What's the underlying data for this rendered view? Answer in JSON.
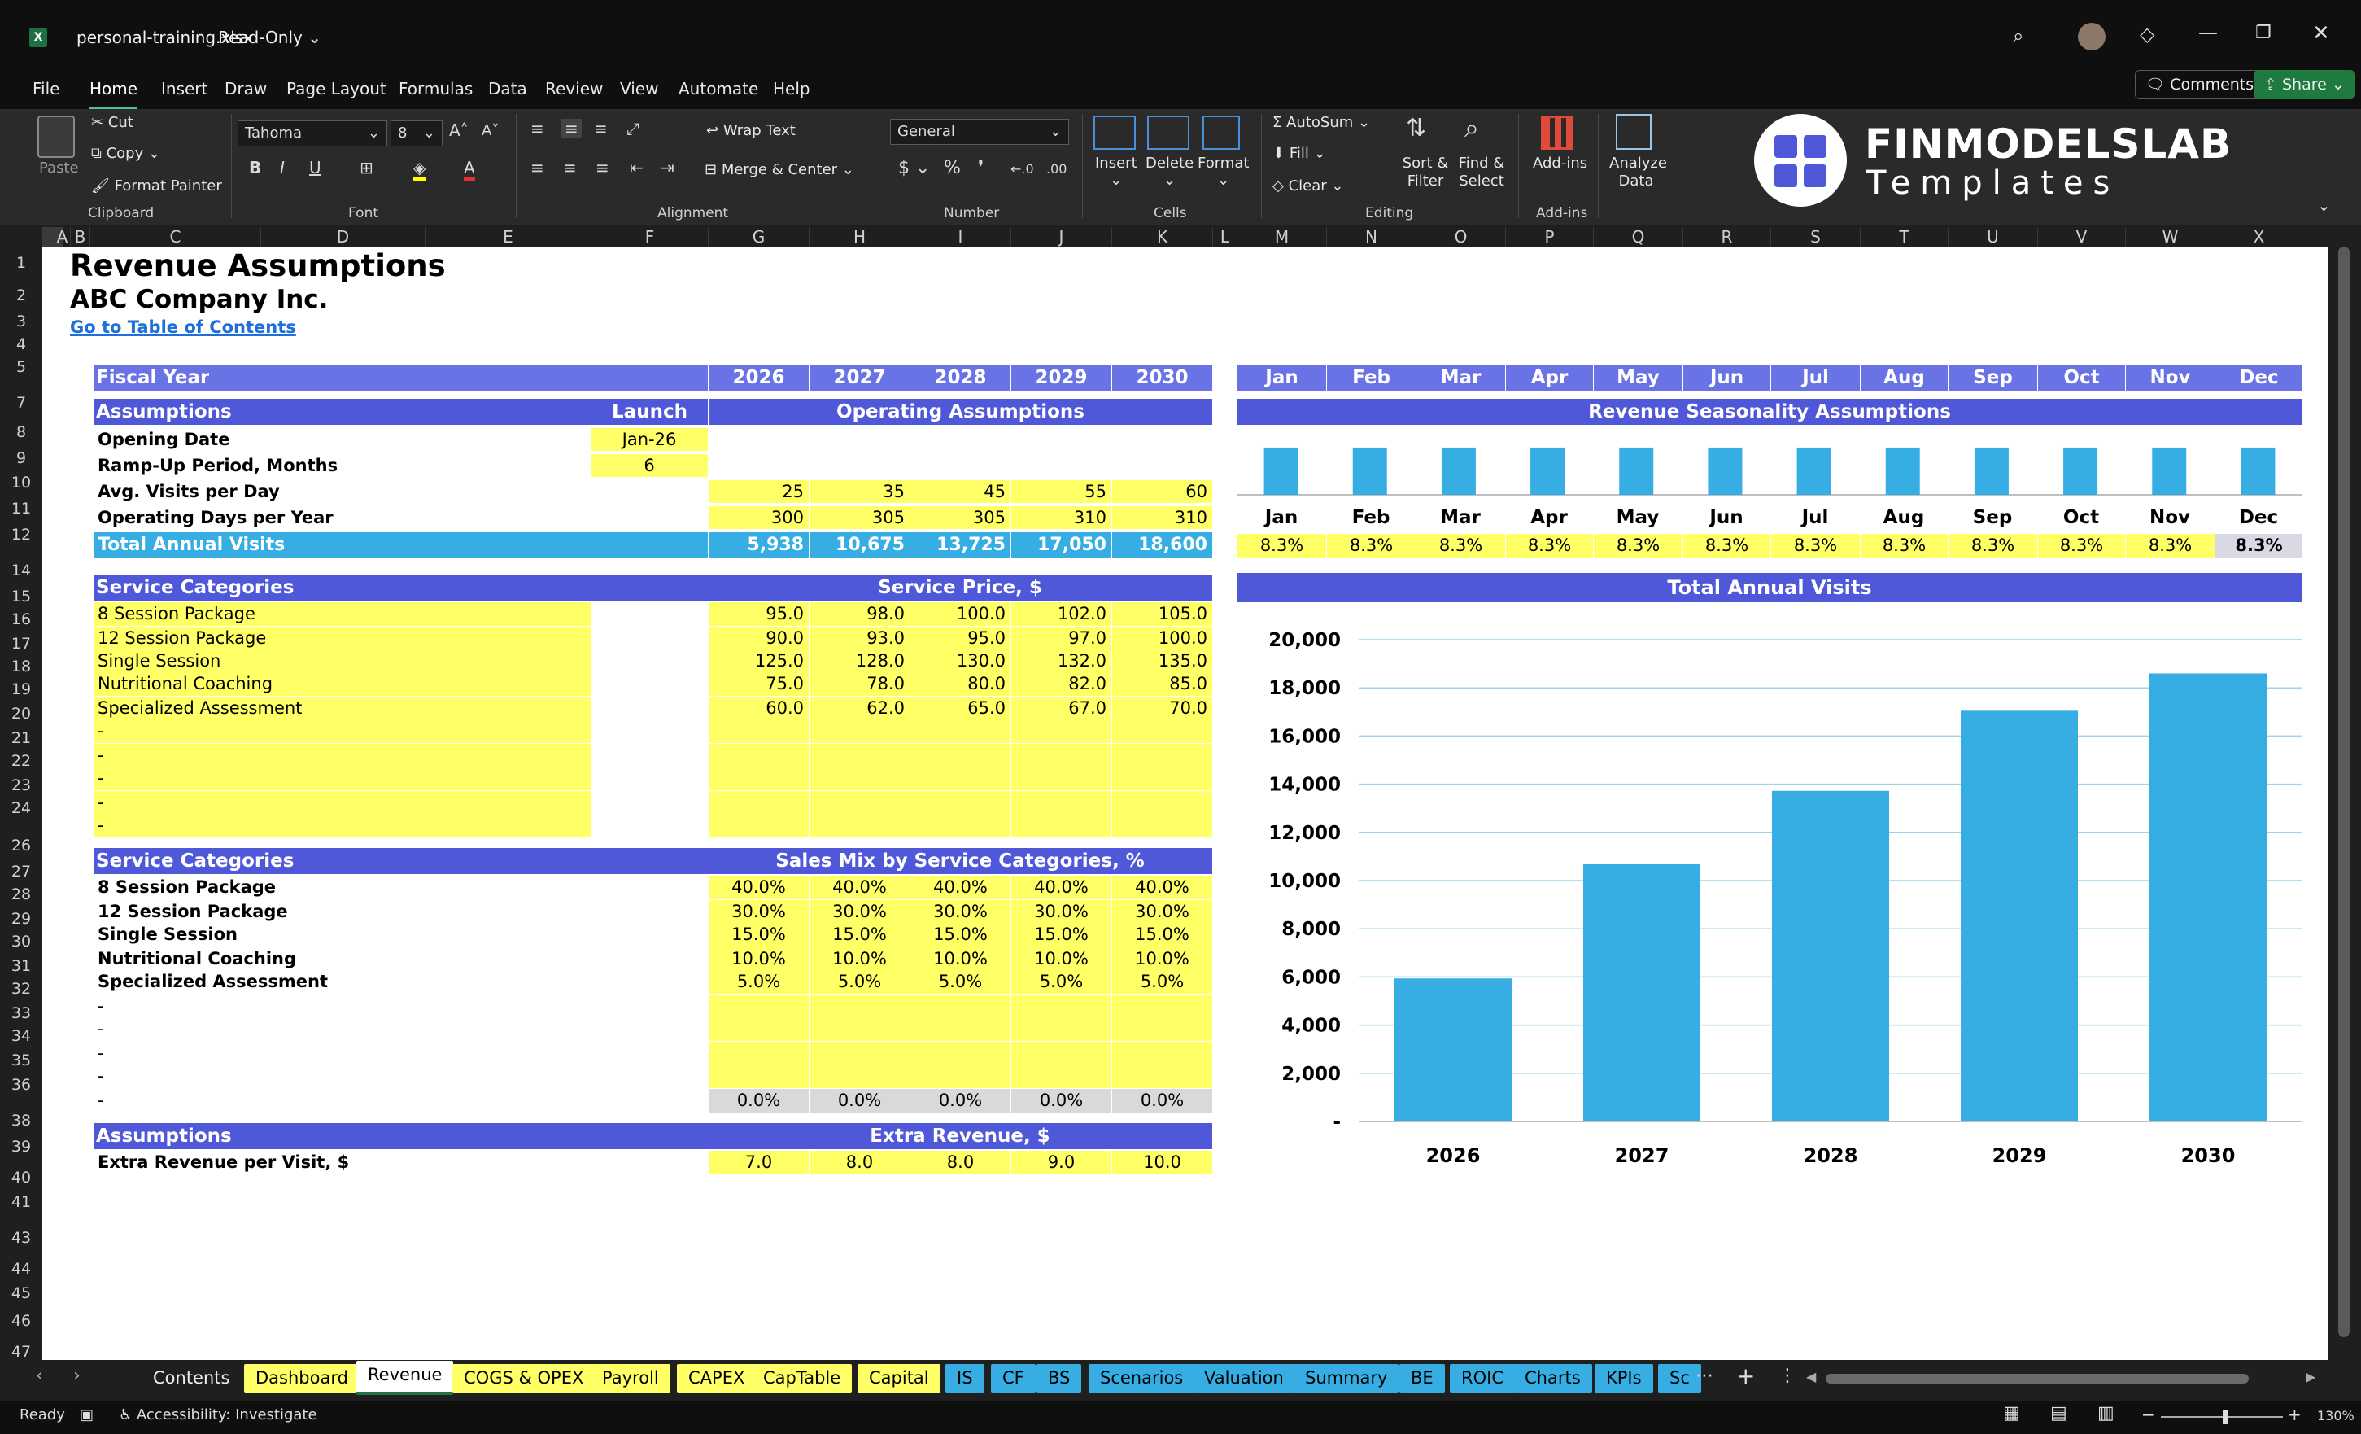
{
  "window": {
    "file_name": "personal-training.xlsx",
    "mode": "Read-Only ⌄"
  },
  "menu": [
    "File",
    "Home",
    "Insert",
    "Draw",
    "Page Layout",
    "Formulas",
    "Data",
    "Review",
    "View",
    "Automate",
    "Help"
  ],
  "top_buttons": {
    "comments": "Comments",
    "share": "Share"
  },
  "ribbon": {
    "paste": "Paste",
    "cut": "Cut",
    "copy": "Copy",
    "format_painter": "Format Painter",
    "clipboard": "Clipboard",
    "font_name": "Tahoma",
    "font_size": "8",
    "font": "Font",
    "wrap_text": "Wrap Text",
    "merge_center": "Merge & Center",
    "alignment": "Alignment",
    "number_format": "General",
    "number": "Number",
    "insert": "Insert",
    "delete": "Delete",
    "format": "Format",
    "cells": "Cells",
    "autosum": "AutoSum",
    "fill": "Fill",
    "clear": "Clear",
    "sort_filter": "Sort & Filter",
    "find_select": "Find & Select",
    "editing": "Editing",
    "addins": "Add-ins",
    "addins_group": "Add-ins",
    "analyze_data": "Analyze Data"
  },
  "logo": {
    "brand": "FINMODELSLAB",
    "sub": "Templates",
    "colors": {
      "mark": "#4f58d9",
      "circle": "#ffffff"
    }
  },
  "columns": [
    "A",
    "B",
    "C",
    "D",
    "E",
    "F",
    "G",
    "H",
    "I",
    "J",
    "K",
    "L",
    "M",
    "N",
    "O",
    "P",
    "Q",
    "R",
    "S",
    "T",
    "U",
    "V",
    "W",
    "X"
  ],
  "rows": [
    "1",
    "2",
    "3",
    "4",
    "5",
    "7",
    "8",
    "9",
    "10",
    "11",
    "12",
    "14",
    "15",
    "16",
    "17",
    "18",
    "19",
    "20",
    "21",
    "22",
    "23",
    "24",
    "26",
    "27",
    "28",
    "29",
    "30",
    "31",
    "32",
    "33",
    "34",
    "35",
    "36",
    "38",
    "39",
    "40",
    "41",
    "43",
    "44",
    "45",
    "46",
    "47"
  ],
  "sheet": {
    "title": "Revenue Assumptions",
    "company": "ABC Company Inc.",
    "toc_link": "Go to Table of Contents",
    "fiscal_year_label": "Fiscal Year",
    "years": [
      "2026",
      "2027",
      "2028",
      "2029",
      "2030"
    ],
    "months": [
      "Jan",
      "Feb",
      "Mar",
      "Apr",
      "May",
      "Jun",
      "Jul",
      "Aug",
      "Sep",
      "Oct",
      "Nov",
      "Dec"
    ],
    "assumptions_label": "Assumptions",
    "launch_label": "Launch",
    "operating_assumptions": "Operating Assumptions",
    "seasonality_title": "Revenue Seasonality Assumptions",
    "opening_date_label": "Opening Date",
    "opening_date": "Jan-26",
    "ramp_label": "Ramp-Up Period, Months",
    "ramp": "6",
    "visits_label": "Avg. Visits per Day",
    "visits": [
      "25",
      "35",
      "45",
      "55",
      "60"
    ],
    "days_label": "Operating Days per Year",
    "days": [
      "300",
      "305",
      "305",
      "310",
      "310"
    ],
    "total_label": "Total Annual Visits",
    "total": [
      "5,938",
      "10,675",
      "13,725",
      "17,050",
      "18,600"
    ],
    "seasonality": [
      "8.3%",
      "8.3%",
      "8.3%",
      "8.3%",
      "8.3%",
      "8.3%",
      "8.3%",
      "8.3%",
      "8.3%",
      "8.3%",
      "8.3%",
      "8.3%"
    ],
    "service_categories_label": "Service Categories",
    "service_price_label": "Service Price, $",
    "services": [
      "8 Session Package",
      "12 Session Package",
      "Single Session",
      "Nutritional Coaching",
      "Specialized Assessment",
      "-",
      "-",
      "-",
      "-",
      "-"
    ],
    "prices": [
      [
        "95.0",
        "98.0",
        "100.0",
        "102.0",
        "105.0"
      ],
      [
        "90.0",
        "93.0",
        "95.0",
        "97.0",
        "100.0"
      ],
      [
        "125.0",
        "128.0",
        "130.0",
        "132.0",
        "135.0"
      ],
      [
        "75.0",
        "78.0",
        "80.0",
        "82.0",
        "85.0"
      ],
      [
        "60.0",
        "62.0",
        "65.0",
        "67.0",
        "70.0"
      ]
    ],
    "sales_mix_label": "Sales Mix by Service Categories, %",
    "mix": [
      [
        "40.0%",
        "40.0%",
        "40.0%",
        "40.0%",
        "40.0%"
      ],
      [
        "30.0%",
        "30.0%",
        "30.0%",
        "30.0%",
        "30.0%"
      ],
      [
        "15.0%",
        "15.0%",
        "15.0%",
        "15.0%",
        "15.0%"
      ],
      [
        "10.0%",
        "10.0%",
        "10.0%",
        "10.0%",
        "10.0%"
      ],
      [
        "5.0%",
        "5.0%",
        "5.0%",
        "5.0%",
        "5.0%"
      ]
    ],
    "mix_total": [
      "0.0%",
      "0.0%",
      "0.0%",
      "0.0%",
      "0.0%"
    ],
    "extra_revenue_label": "Extra Revenue, $",
    "extra_per_visit_label": "Extra Revenue per Visit, $",
    "extra": [
      "7.0",
      "8.0",
      "8.0",
      "9.0",
      "10.0"
    ]
  },
  "chart_data": [
    {
      "type": "bar",
      "categories": [
        "Jan",
        "Feb",
        "Mar",
        "Apr",
        "May",
        "Jun",
        "Jul",
        "Aug",
        "Sep",
        "Oct",
        "Nov",
        "Dec"
      ],
      "values": [
        8.3,
        8.3,
        8.3,
        8.3,
        8.3,
        8.3,
        8.3,
        8.3,
        8.3,
        8.3,
        8.3,
        8.3
      ],
      "color": "#36aee4"
    },
    {
      "type": "bar",
      "title": "Total Annual Visits",
      "categories": [
        "2026",
        "2027",
        "2028",
        "2029",
        "2030"
      ],
      "values": [
        5938,
        10675,
        13725,
        17050,
        18600
      ],
      "ylim": [
        0,
        20000
      ],
      "yticks": [
        "-",
        "2,000",
        "4,000",
        "6,000",
        "8,000",
        "10,000",
        "12,000",
        "14,000",
        "16,000",
        "18,000",
        "20,000"
      ],
      "grid": true,
      "color": "#36aee4"
    }
  ],
  "tabs": [
    {
      "label": "Contents",
      "style": "w"
    },
    {
      "label": "Dashboard",
      "style": "y"
    },
    {
      "label": "Revenue",
      "style": "act"
    },
    {
      "label": "COGS & OPEX",
      "style": "y"
    },
    {
      "label": "Payroll",
      "style": "y"
    },
    {
      "label": "CAPEX",
      "style": "y"
    },
    {
      "label": "CapTable",
      "style": "y"
    },
    {
      "label": "Capital",
      "style": "y"
    },
    {
      "label": "IS",
      "style": "bl"
    },
    {
      "label": "CF",
      "style": "bl"
    },
    {
      "label": "BS",
      "style": "bl"
    },
    {
      "label": "Scenarios",
      "style": "bl"
    },
    {
      "label": "Valuation",
      "style": "bl"
    },
    {
      "label": "Summary",
      "style": "bl"
    },
    {
      "label": "BE",
      "style": "bl"
    },
    {
      "label": "ROIC",
      "style": "bl"
    },
    {
      "label": "Charts",
      "style": "bl"
    },
    {
      "label": "KPIs",
      "style": "bl"
    },
    {
      "label": "Sc",
      "style": "bl"
    }
  ],
  "status": {
    "ready": "Ready",
    "accessibility": "Accessibility: Investigate",
    "zoom": "130%"
  }
}
